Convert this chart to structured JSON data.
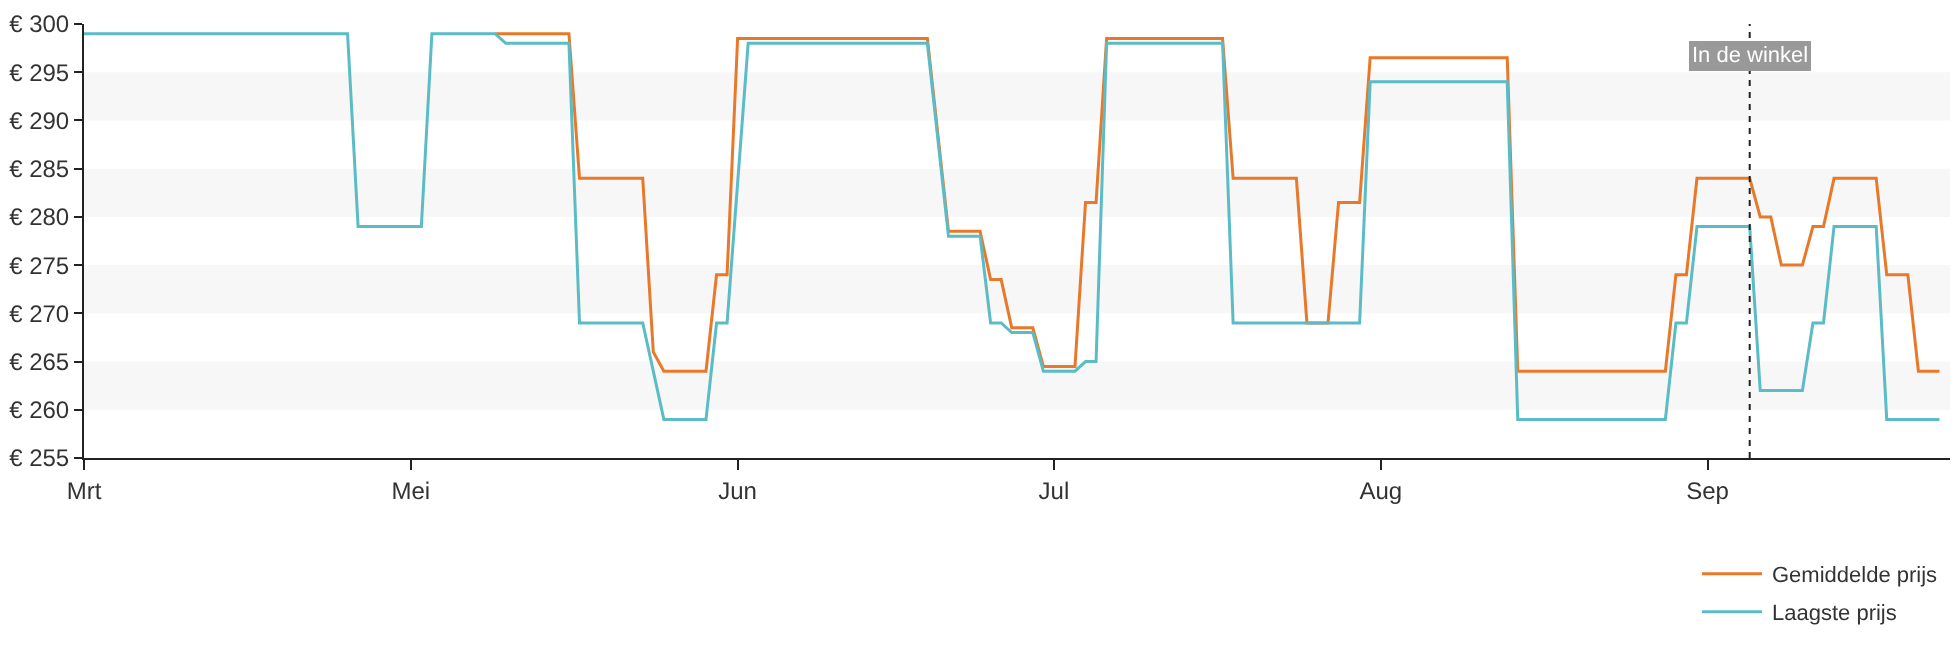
{
  "chart_data": {
    "type": "line",
    "xlim": [
      "--03-31",
      "--09-24"
    ],
    "xticks": [
      {
        "value": "--03-31",
        "label": "Mrt"
      },
      {
        "value": "--05-01",
        "label": "Mei"
      },
      {
        "value": "--06-01",
        "label": "Jun"
      },
      {
        "value": "--07-01",
        "label": "Jul"
      },
      {
        "value": "--08-01",
        "label": "Aug"
      },
      {
        "value": "--09-01",
        "label": "Sep"
      }
    ],
    "ylim": [
      255,
      300
    ],
    "yticks": [
      {
        "value": 255,
        "label": "€ 255"
      },
      {
        "value": 260,
        "label": "€ 260"
      },
      {
        "value": 265,
        "label": "€ 265"
      },
      {
        "value": 270,
        "label": "€ 270"
      },
      {
        "value": 275,
        "label": "€ 275"
      },
      {
        "value": 280,
        "label": "€ 280"
      },
      {
        "value": 285,
        "label": "€ 285"
      },
      {
        "value": 290,
        "label": "€ 290"
      },
      {
        "value": 295,
        "label": "€ 295"
      },
      {
        "value": 300,
        "label": "€ 300"
      }
    ],
    "bands": [
      {
        "axis": "y",
        "from": 260,
        "to": 265,
        "color": "#f7f7f7"
      },
      {
        "axis": "y",
        "from": 270,
        "to": 275,
        "color": "#f7f7f7"
      },
      {
        "axis": "y",
        "from": 280,
        "to": 285,
        "color": "#f7f7f7"
      },
      {
        "axis": "y",
        "from": 290,
        "to": 295,
        "color": "#f7f7f7"
      }
    ],
    "legend": "bottom right",
    "marker": "none",
    "line_style": "solid",
    "ref_lines": [
      {
        "axis": "x",
        "value": "--09-05",
        "label": "In de winkel",
        "line_style": "dotted",
        "color": "#222222"
      }
    ],
    "series": [
      {
        "name": "Gemiddelde prijs",
        "color": "#e8792b",
        "x": [
          "--05-09",
          "--05-16",
          "--05-17",
          "--05-23",
          "--05-24",
          "--05-25",
          "--05-29",
          "--05-30",
          "--05-31",
          "--06-01",
          "--06-19",
          "--06-21",
          "--06-24",
          "--06-25",
          "--06-26",
          "--06-27",
          "--06-29",
          "--06-30",
          "--07-03",
          "--07-04",
          "--07-05",
          "--07-06",
          "--07-17",
          "--07-18",
          "--07-24",
          "--07-25",
          "--07-27",
          "--07-28",
          "--07-30",
          "--07-31",
          "--08-13",
          "--08-14",
          "--08-28",
          "--08-29",
          "--08-30",
          "--08-31",
          "--09-05",
          "--09-06",
          "--09-07",
          "--09-08",
          "--09-10",
          "--09-11",
          "--09-12",
          "--09-13",
          "--09-17",
          "--09-18",
          "--09-20",
          "--09-21",
          "--09-23"
        ],
        "values": [
          299,
          299,
          284,
          284,
          266,
          264,
          264,
          274,
          274,
          298.5,
          298.5,
          278.5,
          278.5,
          273.5,
          273.5,
          268.5,
          268.5,
          264.5,
          264.5,
          281.5,
          281.5,
          298.5,
          298.5,
          284,
          284,
          269,
          269,
          281.5,
          281.5,
          296.5,
          296.5,
          264,
          264,
          274,
          274,
          284,
          284,
          280,
          280,
          275,
          275,
          279,
          279,
          284,
          284,
          274,
          274,
          264,
          264
        ]
      },
      {
        "name": "Laagste prijs",
        "color": "#5bbcc6",
        "x": [
          "--03-31",
          "--04-25",
          "--04-26",
          "--05-02",
          "--05-03",
          "--05-09",
          "--05-10",
          "--05-16",
          "--05-17",
          "--05-23",
          "--05-25",
          "--05-29",
          "--05-30",
          "--05-31",
          "--06-02",
          "--06-19",
          "--06-21",
          "--06-24",
          "--06-25",
          "--06-26",
          "--06-27",
          "--06-29",
          "--06-30",
          "--07-03",
          "--07-04",
          "--07-05",
          "--07-06",
          "--07-17",
          "--07-18",
          "--07-30",
          "--07-31",
          "--08-13",
          "--08-14",
          "--08-28",
          "--08-29",
          "--08-30",
          "--08-31",
          "--09-05",
          "--09-06",
          "--09-10",
          "--09-11",
          "--09-12",
          "--09-13",
          "--09-17",
          "--09-18",
          "--09-23"
        ],
        "values": [
          299,
          299,
          279,
          279,
          299,
          299,
          298,
          298,
          269,
          269,
          259,
          259,
          269,
          269,
          298,
          298,
          278,
          278,
          269,
          269,
          268,
          268,
          264,
          264,
          265,
          265,
          298,
          298,
          269,
          269,
          294,
          294,
          259,
          259,
          269,
          269,
          279,
          279,
          262,
          262,
          269,
          269,
          279,
          279,
          259,
          259
        ]
      }
    ]
  }
}
